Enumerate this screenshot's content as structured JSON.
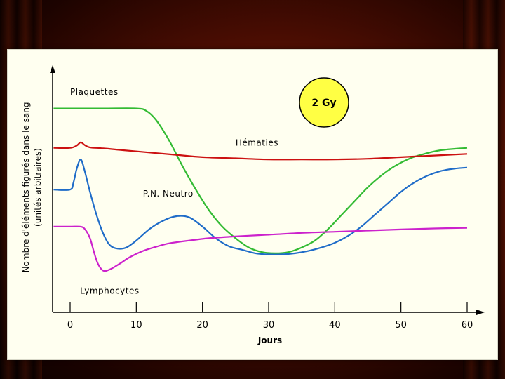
{
  "chart_data": {
    "type": "line",
    "xlabel": "Jours",
    "ylabel_line1": "Nombre d'éléments figurés dans le sang",
    "ylabel_line2": "(unités arbitraires)",
    "xlim": [
      0,
      60
    ],
    "ylim": [
      0,
      100
    ],
    "x_ticks": [
      0,
      10,
      20,
      30,
      40,
      50,
      60
    ],
    "grid": false,
    "legend": "none",
    "badge": {
      "label": "2 Gy",
      "color": "#ffff44"
    },
    "series": [
      {
        "name": "Plaquettes",
        "color": "#33bb33",
        "label_at": [
          0,
          94
        ],
        "points": [
          [
            -2.5,
            88
          ],
          [
            0,
            88
          ],
          [
            5,
            88
          ],
          [
            10,
            88
          ],
          [
            11.5,
            87
          ],
          [
            13,
            83
          ],
          [
            15,
            74
          ],
          [
            17,
            63
          ],
          [
            19,
            53
          ],
          [
            21,
            44
          ],
          [
            23,
            37
          ],
          [
            25,
            32
          ],
          [
            27,
            28
          ],
          [
            29,
            26
          ],
          [
            31,
            25.5
          ],
          [
            33,
            26
          ],
          [
            35,
            28
          ],
          [
            37,
            31
          ],
          [
            39,
            36
          ],
          [
            41,
            42
          ],
          [
            43,
            48
          ],
          [
            45,
            54
          ],
          [
            47,
            59
          ],
          [
            49,
            63
          ],
          [
            51,
            66
          ],
          [
            53,
            68
          ],
          [
            56,
            70
          ],
          [
            60,
            71
          ]
        ]
      },
      {
        "name": "Hématies",
        "color": "#cc1111",
        "label_at": [
          25,
          72
        ],
        "points": [
          [
            -2.5,
            71
          ],
          [
            0,
            71
          ],
          [
            1,
            72
          ],
          [
            1.6,
            73.4
          ],
          [
            2.2,
            72.2
          ],
          [
            3,
            71.2
          ],
          [
            5,
            70.8
          ],
          [
            8,
            70
          ],
          [
            12,
            69
          ],
          [
            16,
            68
          ],
          [
            20,
            67
          ],
          [
            25,
            66.5
          ],
          [
            30,
            66
          ],
          [
            35,
            66
          ],
          [
            40,
            66
          ],
          [
            45,
            66.3
          ],
          [
            50,
            67
          ],
          [
            55,
            67.7
          ],
          [
            60,
            68.4
          ]
        ]
      },
      {
        "name": "P.N. Neutro",
        "color": "#1f6cc8",
        "label_at": [
          11,
          50
        ],
        "points": [
          [
            -2.5,
            53
          ],
          [
            0,
            53
          ],
          [
            0.5,
            56
          ],
          [
            1,
            62
          ],
          [
            1.6,
            66
          ],
          [
            2.2,
            61
          ],
          [
            3,
            52
          ],
          [
            4,
            42
          ],
          [
            5,
            34
          ],
          [
            6,
            29
          ],
          [
            7.2,
            27.5
          ],
          [
            8.5,
            28
          ],
          [
            10,
            31
          ],
          [
            12,
            36
          ],
          [
            14,
            39.5
          ],
          [
            16,
            41.5
          ],
          [
            18,
            41
          ],
          [
            20,
            37
          ],
          [
            22,
            32
          ],
          [
            24,
            28.5
          ],
          [
            26,
            27
          ],
          [
            28,
            25.5
          ],
          [
            30,
            25
          ],
          [
            32,
            25
          ],
          [
            34,
            25.5
          ],
          [
            36,
            26.5
          ],
          [
            38,
            28
          ],
          [
            40,
            30
          ],
          [
            42,
            33
          ],
          [
            44,
            37
          ],
          [
            46,
            42
          ],
          [
            48,
            47
          ],
          [
            50,
            52
          ],
          [
            52,
            56
          ],
          [
            54,
            59
          ],
          [
            56,
            61
          ],
          [
            58,
            62
          ],
          [
            60,
            62.5
          ]
        ]
      },
      {
        "name": "Lymphocytes",
        "color": "#cc22cc",
        "label_at": [
          1.5,
          8
        ],
        "points": [
          [
            -2.5,
            37
          ],
          [
            0,
            37
          ],
          [
            1.5,
            37
          ],
          [
            2.2,
            36
          ],
          [
            3,
            32
          ],
          [
            3.6,
            26
          ],
          [
            4.2,
            21
          ],
          [
            5,
            18
          ],
          [
            6,
            18.5
          ],
          [
            7.5,
            21
          ],
          [
            9,
            23.8
          ],
          [
            11,
            26.5
          ],
          [
            13,
            28.3
          ],
          [
            15,
            29.8
          ],
          [
            18,
            31
          ],
          [
            21,
            32
          ],
          [
            24,
            32.6
          ],
          [
            27,
            33.1
          ],
          [
            30,
            33.5
          ],
          [
            35,
            34.3
          ],
          [
            40,
            34.8
          ],
          [
            45,
            35.3
          ],
          [
            50,
            35.8
          ],
          [
            55,
            36.2
          ],
          [
            60,
            36.5
          ]
        ]
      }
    ]
  }
}
